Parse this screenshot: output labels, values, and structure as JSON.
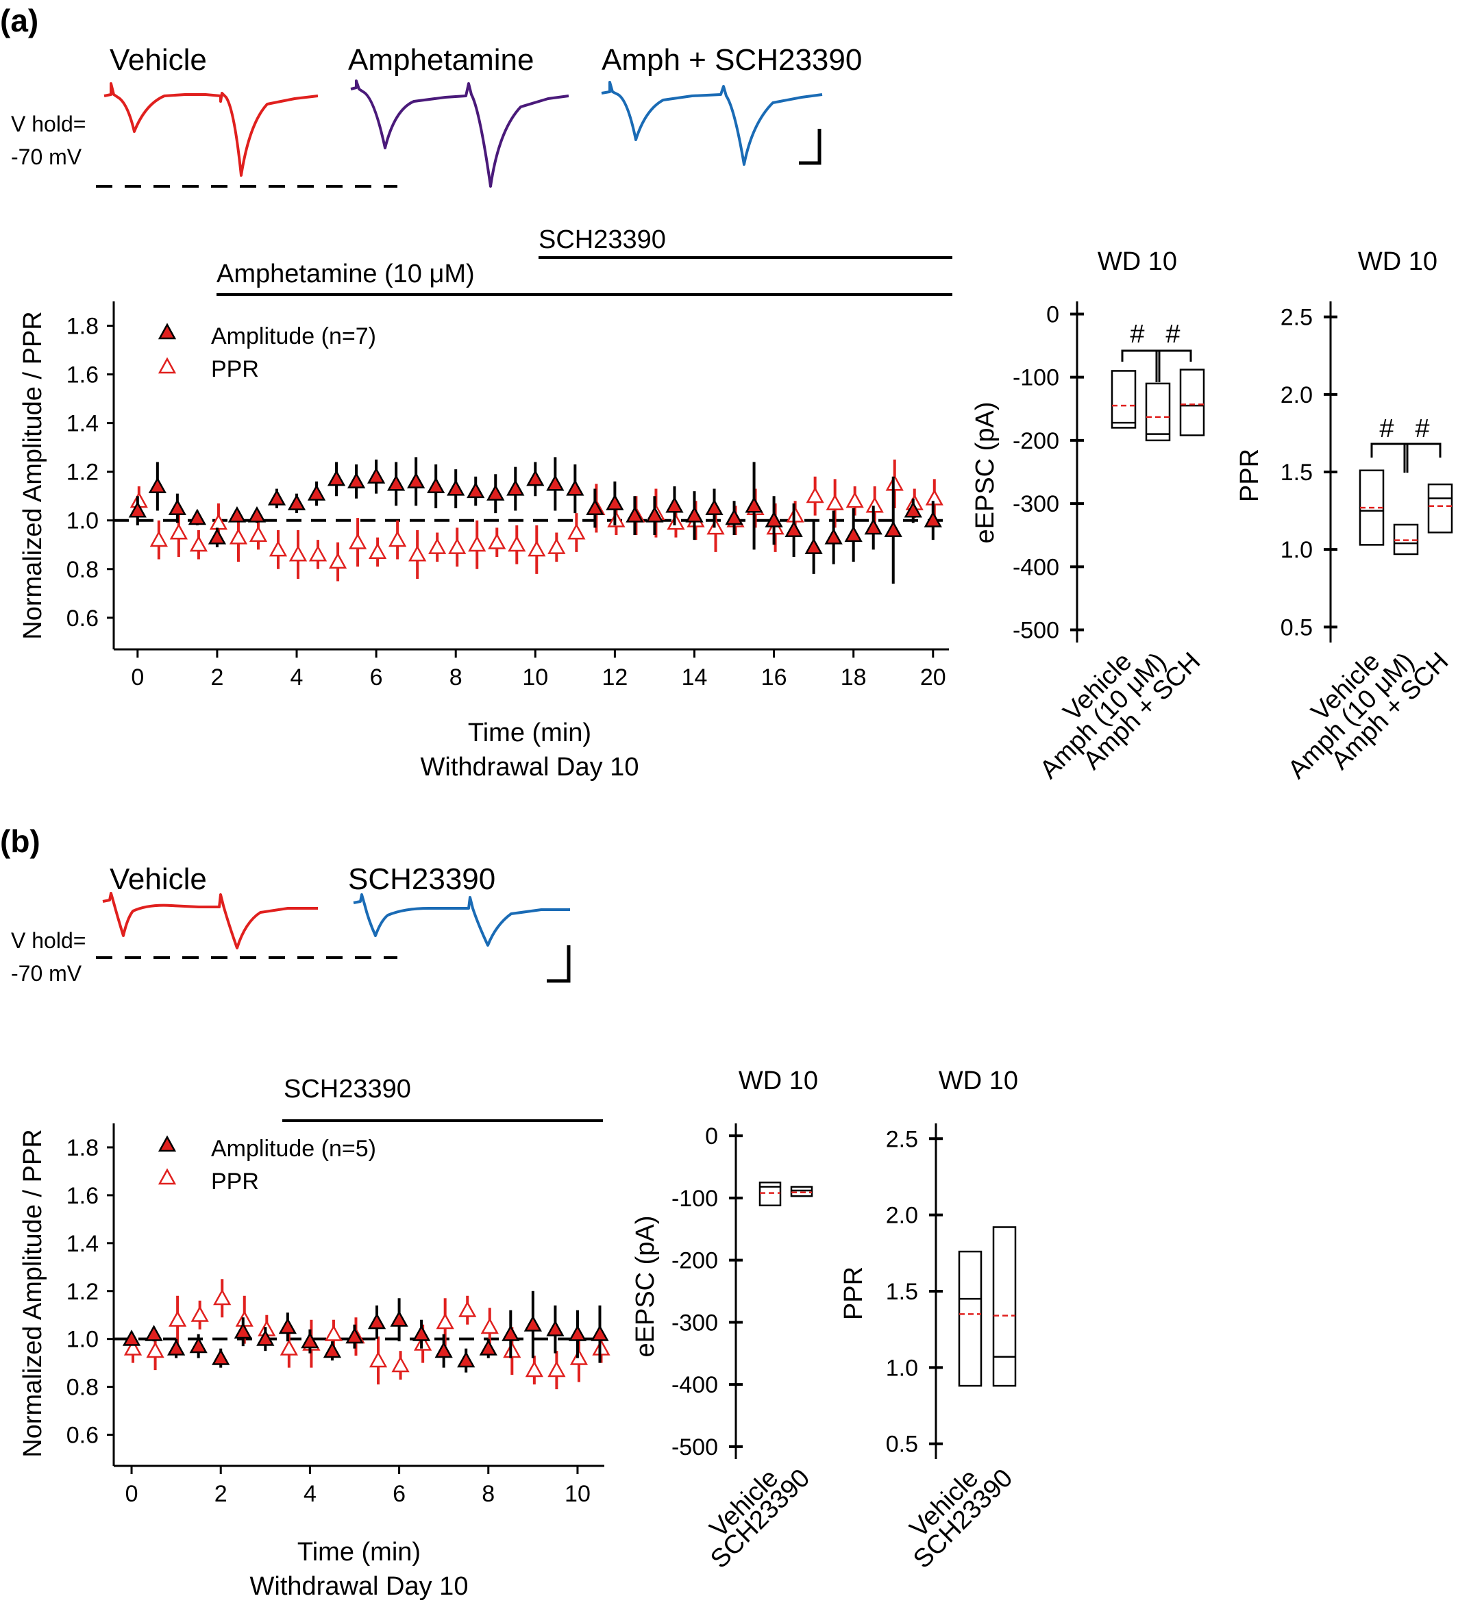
{
  "colors": {
    "vehicle": "#e0201e",
    "amphetamine": "#4a1a7a",
    "sch": "#1a6bb5",
    "ppr": "#e0201e",
    "amplitude_fill": "#e0201e",
    "median": "#000000",
    "mean": "#e0201e"
  },
  "panel_a": {
    "label": "(a)",
    "traces": [
      "Vehicle",
      "Amphetamine",
      "Amph + SCH23390"
    ],
    "vhold": [
      "V hold=",
      "-70 mV"
    ],
    "bar_sch": "SCH23390",
    "bar_amph": "Amphetamine (10 μM)",
    "footnote": "Withdrawal Day 10",
    "box_title": "WD 10",
    "sig": "#"
  },
  "panel_b": {
    "label": "(b)",
    "traces": [
      "Vehicle",
      "SCH23390"
    ],
    "vhold": [
      "V hold=",
      "-70 mV"
    ],
    "bar_sch": "SCH23390",
    "footnote": "Withdrawal Day 10",
    "box_title": "WD 10"
  },
  "chart_data": [
    {
      "id": "a_timecourse",
      "type": "scatter",
      "xlabel": "Time (min)",
      "ylabel": "Normalized Amplitude / PPR",
      "xlim": [
        -0.6,
        20.4
      ],
      "ylim": [
        0.47,
        1.9
      ],
      "xticks": [
        0,
        2,
        4,
        6,
        8,
        10,
        12,
        14,
        16,
        18,
        20
      ],
      "yticks": [
        0.6,
        0.8,
        1.0,
        1.2,
        1.4,
        1.6,
        1.8
      ],
      "reference_line": 1.0,
      "series": [
        {
          "name": "Amplitude (n=7)",
          "marker": "filled-triangle",
          "x": [
            0,
            0.5,
            1,
            1.5,
            2,
            2.5,
            3,
            3.5,
            4,
            4.5,
            5,
            5.5,
            6,
            6.5,
            7,
            7.5,
            8,
            8.5,
            9,
            9.5,
            10,
            10.5,
            11,
            11.5,
            12,
            12.5,
            13,
            13.5,
            14,
            14.5,
            15,
            15.5,
            16,
            16.5,
            17,
            17.5,
            18,
            18.5,
            19,
            19.5,
            20
          ],
          "y": [
            1.04,
            1.14,
            1.05,
            1.01,
            0.93,
            1.02,
            1.02,
            1.09,
            1.07,
            1.11,
            1.17,
            1.16,
            1.18,
            1.15,
            1.16,
            1.14,
            1.13,
            1.12,
            1.11,
            1.13,
            1.17,
            1.15,
            1.13,
            1.05,
            1.07,
            1.02,
            1.02,
            1.06,
            1.02,
            1.05,
            1.01,
            1.06,
            1.0,
            0.96,
            0.89,
            0.93,
            0.94,
            0.97,
            0.96,
            1.04,
            1.0
          ],
          "err": [
            0.06,
            0.1,
            0.06,
            0.03,
            0.04,
            0.02,
            0.03,
            0.04,
            0.04,
            0.05,
            0.07,
            0.07,
            0.07,
            0.09,
            0.1,
            0.09,
            0.08,
            0.06,
            0.08,
            0.09,
            0.07,
            0.11,
            0.1,
            0.08,
            0.09,
            0.08,
            0.08,
            0.08,
            0.1,
            0.08,
            0.07,
            0.18,
            0.1,
            0.11,
            0.11,
            0.11,
            0.11,
            0.09,
            0.22,
            0.05,
            0.08
          ]
        },
        {
          "name": "PPR",
          "marker": "open-triangle",
          "x": [
            0,
            0.5,
            1,
            1.5,
            2,
            2.5,
            3,
            3.5,
            4,
            4.5,
            5,
            5.5,
            6,
            6.5,
            7,
            7.5,
            8,
            8.5,
            9,
            9.5,
            10,
            10.5,
            11,
            11.5,
            12,
            12.5,
            13,
            13.5,
            14,
            14.5,
            15,
            15.5,
            16,
            16.5,
            17,
            17.5,
            18,
            18.5,
            19,
            19.5,
            20
          ],
          "y": [
            1.08,
            0.92,
            0.95,
            0.9,
            0.99,
            0.93,
            0.94,
            0.88,
            0.86,
            0.86,
            0.83,
            0.91,
            0.87,
            0.92,
            0.86,
            0.89,
            0.89,
            0.9,
            0.91,
            0.9,
            0.88,
            0.89,
            0.95,
            1.05,
            1.0,
            1.02,
            1.03,
            0.99,
            1.0,
            0.97,
            1.0,
            1.05,
            0.97,
            1.02,
            1.1,
            1.07,
            1.08,
            1.06,
            1.15,
            1.07,
            1.09
          ]
        }
      ]
    },
    {
      "id": "a_eEPSC",
      "type": "box",
      "title": "WD 10",
      "ylabel": "eEPSC (pA)",
      "ylim": [
        -520,
        20
      ],
      "yticks": [
        0,
        -100,
        -200,
        -300,
        -400,
        -500
      ],
      "categories": [
        "Vehicle",
        "Amph (10 μM)",
        "Amph + SCH"
      ],
      "boxes": [
        {
          "top": -90,
          "bottom": -180,
          "median": -172,
          "mean": -145
        },
        {
          "top": -110,
          "bottom": -200,
          "median": -190,
          "mean": -163
        },
        {
          "top": -88,
          "bottom": -192,
          "median": -145,
          "mean": -143
        }
      ]
    },
    {
      "id": "a_PPR",
      "type": "box",
      "title": "WD 10",
      "ylabel": "PPR",
      "ylim": [
        0.4,
        2.6
      ],
      "yticks": [
        0.5,
        1.0,
        1.5,
        2.0,
        2.5
      ],
      "categories": [
        "Vehicle",
        "Amph (10 μM)",
        "Amph + SCH"
      ],
      "boxes": [
        {
          "top": 1.51,
          "bottom": 1.03,
          "median": 1.25,
          "mean": 1.27
        },
        {
          "top": 1.16,
          "bottom": 0.97,
          "median": 1.04,
          "mean": 1.06
        },
        {
          "top": 1.42,
          "bottom": 1.11,
          "median": 1.33,
          "mean": 1.28
        }
      ]
    },
    {
      "id": "b_timecourse",
      "type": "scatter",
      "xlabel": "Time (min)",
      "ylabel": "Normalized Amplitude / PPR",
      "xlim": [
        -0.4,
        10.6
      ],
      "ylim": [
        0.47,
        1.9
      ],
      "xticks": [
        0,
        2,
        4,
        6,
        8,
        10
      ],
      "yticks": [
        0.6,
        0.8,
        1.0,
        1.2,
        1.4,
        1.6,
        1.8
      ],
      "reference_line": 1.0,
      "series": [
        {
          "name": "Amplitude (n=5)",
          "marker": "filled-triangle",
          "x": [
            0,
            0.5,
            1,
            1.5,
            2,
            2.5,
            3,
            3.5,
            4,
            4.5,
            5,
            5.5,
            6,
            6.5,
            7,
            7.5,
            8,
            8.5,
            9,
            9.5,
            10,
            10.5
          ],
          "y": [
            1.0,
            1.02,
            0.96,
            0.97,
            0.92,
            1.03,
            1.0,
            1.05,
            0.99,
            0.95,
            1.01,
            1.07,
            1.08,
            1.02,
            0.95,
            0.91,
            0.96,
            1.02,
            1.06,
            1.04,
            1.02,
            1.02
          ],
          "err": [
            0.02,
            0.03,
            0.04,
            0.05,
            0.04,
            0.06,
            0.05,
            0.06,
            0.05,
            0.04,
            0.05,
            0.07,
            0.09,
            0.06,
            0.07,
            0.05,
            0.04,
            0.1,
            0.14,
            0.1,
            0.1,
            0.12
          ]
        },
        {
          "name": "PPR",
          "marker": "open-triangle",
          "x": [
            0,
            0.5,
            1,
            1.5,
            2,
            2.5,
            3,
            3.5,
            4,
            4.5,
            5,
            5.5,
            6,
            6.5,
            7,
            7.5,
            8,
            8.5,
            9,
            9.5,
            10,
            10.5
          ],
          "y": [
            0.96,
            0.95,
            1.08,
            1.1,
            1.17,
            1.08,
            1.04,
            0.96,
            0.98,
            1.02,
            1.01,
            0.91,
            0.89,
            0.98,
            1.07,
            1.12,
            1.05,
            0.95,
            0.87,
            0.87,
            0.92,
            0.96
          ]
        }
      ]
    },
    {
      "id": "b_eEPSC",
      "type": "box",
      "title": "WD 10",
      "ylabel": "eEPSC (pA)",
      "ylim": [
        -520,
        20
      ],
      "yticks": [
        0,
        -100,
        -200,
        -300,
        -400,
        -500
      ],
      "categories": [
        "Vehicle",
        "SCH23390"
      ],
      "boxes": [
        {
          "top": -75,
          "bottom": -112,
          "median": -82,
          "mean": -92
        },
        {
          "top": -82,
          "bottom": -97,
          "median": -88,
          "mean": -91
        }
      ]
    },
    {
      "id": "b_PPR",
      "type": "box",
      "title": "WD 10",
      "ylabel": "PPR",
      "ylim": [
        0.4,
        2.6
      ],
      "yticks": [
        0.5,
        1.0,
        1.5,
        2.0,
        2.5
      ],
      "categories": [
        "Vehicle",
        "SCH23390"
      ],
      "boxes": [
        {
          "top": 1.76,
          "bottom": 0.88,
          "median": 1.45,
          "mean": 1.35
        },
        {
          "top": 1.92,
          "bottom": 0.88,
          "median": 1.07,
          "mean": 1.34
        }
      ]
    }
  ]
}
